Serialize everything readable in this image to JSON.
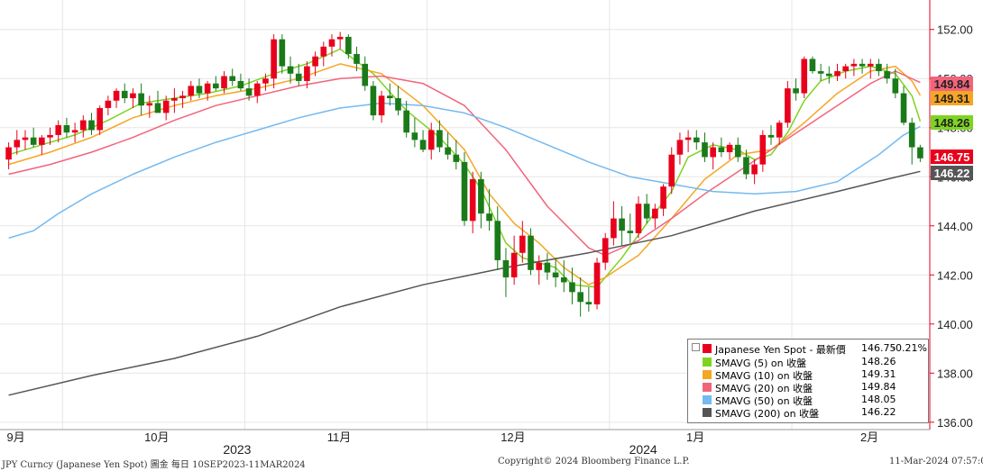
{
  "chart_data": {
    "type": "line",
    "title": "",
    "xlabel": "",
    "ylabel": "",
    "ylim": [
      135.7,
      153.2
    ],
    "yticks": [
      "136.00",
      "138.00",
      "140.00",
      "142.00",
      "144.00",
      "146.00",
      "148.00",
      "150.00",
      "152.00"
    ],
    "grid": true,
    "legend_position": "bottom-right",
    "month_labels": [
      "9月",
      "10月",
      "11月",
      "12月",
      "1月",
      "2月"
    ],
    "year_labels": [
      "2023",
      "2024"
    ],
    "candles": [
      [
        146.7,
        147.4,
        146.3,
        147.2
      ],
      [
        147.2,
        147.9,
        146.9,
        147.5
      ],
      [
        147.5,
        147.9,
        147.1,
        147.6
      ],
      [
        147.6,
        148.0,
        147.2,
        147.3
      ],
      [
        147.3,
        147.7,
        146.9,
        147.6
      ],
      [
        147.6,
        148.0,
        147.3,
        147.7
      ],
      [
        147.7,
        148.3,
        147.4,
        148.1
      ],
      [
        148.1,
        148.4,
        147.6,
        147.8
      ],
      [
        147.8,
        148.2,
        147.4,
        147.9
      ],
      [
        147.9,
        148.5,
        147.6,
        148.3
      ],
      [
        148.3,
        148.6,
        147.7,
        147.9
      ],
      [
        147.9,
        148.9,
        147.7,
        148.8
      ],
      [
        148.8,
        149.3,
        148.5,
        149.1
      ],
      [
        149.1,
        149.6,
        148.8,
        149.5
      ],
      [
        149.5,
        149.8,
        149.0,
        149.2
      ],
      [
        149.2,
        149.6,
        148.8,
        149.4
      ],
      [
        149.4,
        149.8,
        148.5,
        148.9
      ],
      [
        148.9,
        149.3,
        148.4,
        149.0
      ],
      [
        149.0,
        149.5,
        148.7,
        148.6
      ],
      [
        148.6,
        149.3,
        148.3,
        149.1
      ],
      [
        149.1,
        149.6,
        148.6,
        149.2
      ],
      [
        149.2,
        149.5,
        148.8,
        149.3
      ],
      [
        149.3,
        149.9,
        149.1,
        149.7
      ],
      [
        149.7,
        150.0,
        149.2,
        149.4
      ],
      [
        149.4,
        149.9,
        149.1,
        149.8
      ],
      [
        149.8,
        150.1,
        149.5,
        149.6
      ],
      [
        149.6,
        150.3,
        149.4,
        150.1
      ],
      [
        150.1,
        150.4,
        149.7,
        149.9
      ],
      [
        149.9,
        150.2,
        149.5,
        149.6
      ],
      [
        149.6,
        150.0,
        149.1,
        149.3
      ],
      [
        149.3,
        149.9,
        149.0,
        149.8
      ],
      [
        149.8,
        150.2,
        149.5,
        150.0
      ],
      [
        150.0,
        151.8,
        149.6,
        151.6
      ],
      [
        151.6,
        151.8,
        150.2,
        150.5
      ],
      [
        150.5,
        150.9,
        149.8,
        150.2
      ],
      [
        150.2,
        150.6,
        149.7,
        149.9
      ],
      [
        149.9,
        150.7,
        149.6,
        150.5
      ],
      [
        150.5,
        151.1,
        150.1,
        150.9
      ],
      [
        150.9,
        151.5,
        150.5,
        151.3
      ],
      [
        151.3,
        151.8,
        150.9,
        151.6
      ],
      [
        151.6,
        151.9,
        151.2,
        151.7
      ],
      [
        151.7,
        151.8,
        150.8,
        151.0
      ],
      [
        151.0,
        151.3,
        150.3,
        150.6
      ],
      [
        150.6,
        150.9,
        149.5,
        149.7
      ],
      [
        149.7,
        149.9,
        148.3,
        148.5
      ],
      [
        148.5,
        149.5,
        148.2,
        149.3
      ],
      [
        149.3,
        149.8,
        148.9,
        149.2
      ],
      [
        149.2,
        149.7,
        148.5,
        148.7
      ],
      [
        148.7,
        149.1,
        147.6,
        147.8
      ],
      [
        147.8,
        148.4,
        147.2,
        147.5
      ],
      [
        147.5,
        147.9,
        147.0,
        147.1
      ],
      [
        147.1,
        148.2,
        146.7,
        147.9
      ],
      [
        147.9,
        148.3,
        147.0,
        147.2
      ],
      [
        147.2,
        147.8,
        146.7,
        146.9
      ],
      [
        146.9,
        147.5,
        146.3,
        146.6
      ],
      [
        146.6,
        147.0,
        144.0,
        144.2
      ],
      [
        144.2,
        146.2,
        143.7,
        145.9
      ],
      [
        145.9,
        146.2,
        143.9,
        144.5
      ],
      [
        144.5,
        145.5,
        143.8,
        144.2
      ],
      [
        144.2,
        144.8,
        142.2,
        142.6
      ],
      [
        142.6,
        143.1,
        141.1,
        141.9
      ],
      [
        141.9,
        143.6,
        141.6,
        142.9
      ],
      [
        142.9,
        144.2,
        142.5,
        143.6
      ],
      [
        143.6,
        143.9,
        142.0,
        142.2
      ],
      [
        142.2,
        142.8,
        141.6,
        142.5
      ],
      [
        142.5,
        142.9,
        141.8,
        142.1
      ],
      [
        142.1,
        142.7,
        141.5,
        141.9
      ],
      [
        141.9,
        142.6,
        141.3,
        141.7
      ],
      [
        141.7,
        142.3,
        140.8,
        141.3
      ],
      [
        141.3,
        141.9,
        140.3,
        140.9
      ],
      [
        140.9,
        141.5,
        140.5,
        140.8
      ],
      [
        140.8,
        142.7,
        140.6,
        142.5
      ],
      [
        142.5,
        143.7,
        142.2,
        143.5
      ],
      [
        143.5,
        145.0,
        143.2,
        144.3
      ],
      [
        144.3,
        144.8,
        143.2,
        143.8
      ],
      [
        143.8,
        144.5,
        143.3,
        143.7
      ],
      [
        143.7,
        145.2,
        143.5,
        144.9
      ],
      [
        144.9,
        145.3,
        144.1,
        144.3
      ],
      [
        144.3,
        144.9,
        143.9,
        144.7
      ],
      [
        144.7,
        145.7,
        144.4,
        145.6
      ],
      [
        145.6,
        147.2,
        145.3,
        146.9
      ],
      [
        146.9,
        147.8,
        146.5,
        147.5
      ],
      [
        147.5,
        147.9,
        147.0,
        147.6
      ],
      [
        147.6,
        147.9,
        147.1,
        147.4
      ],
      [
        147.4,
        147.8,
        146.6,
        146.8
      ],
      [
        146.8,
        147.4,
        146.3,
        147.2
      ],
      [
        147.2,
        147.6,
        146.8,
        147.0
      ],
      [
        147.0,
        147.4,
        146.7,
        147.3
      ],
      [
        147.3,
        147.6,
        146.6,
        146.8
      ],
      [
        146.8,
        147.1,
        145.9,
        146.1
      ],
      [
        146.1,
        146.7,
        145.7,
        146.5
      ],
      [
        146.5,
        147.9,
        146.2,
        147.7
      ],
      [
        147.7,
        148.1,
        147.3,
        147.6
      ],
      [
        147.6,
        148.3,
        147.3,
        148.2
      ],
      [
        148.2,
        149.9,
        148.0,
        149.6
      ],
      [
        149.6,
        150.0,
        149.1,
        149.4
      ],
      [
        149.4,
        150.9,
        149.2,
        150.8
      ],
      [
        150.8,
        150.9,
        150.2,
        150.3
      ],
      [
        150.3,
        150.6,
        149.9,
        150.2
      ],
      [
        150.2,
        150.5,
        149.8,
        150.1
      ],
      [
        150.1,
        150.6,
        149.9,
        150.3
      ],
      [
        150.3,
        150.6,
        150.0,
        150.5
      ],
      [
        150.5,
        150.8,
        150.1,
        150.6
      ],
      [
        150.6,
        150.8,
        150.2,
        150.5
      ],
      [
        150.5,
        150.8,
        150.0,
        150.6
      ],
      [
        150.6,
        150.8,
        150.1,
        150.3
      ],
      [
        150.3,
        150.6,
        149.8,
        150.0
      ],
      [
        150.0,
        150.4,
        149.2,
        149.4
      ],
      [
        149.4,
        149.7,
        148.1,
        148.2
      ],
      [
        148.2,
        148.4,
        146.5,
        147.2
      ],
      [
        147.2,
        147.3,
        146.6,
        146.75
      ]
    ],
    "series": [
      {
        "name": "SMAVG (5)  on 收盤",
        "color": "#7ed321",
        "values": [
          [
            0,
            146.9
          ],
          [
            4,
            147.3
          ],
          [
            8,
            147.7
          ],
          [
            12,
            148.3
          ],
          [
            16,
            149.0
          ],
          [
            20,
            149.2
          ],
          [
            24,
            149.4
          ],
          [
            28,
            149.7
          ],
          [
            32,
            150.2
          ],
          [
            36,
            150.6
          ],
          [
            40,
            151.2
          ],
          [
            44,
            150.2
          ],
          [
            48,
            148.7
          ],
          [
            52,
            147.6
          ],
          [
            55,
            146.5
          ],
          [
            57,
            145.5
          ],
          [
            60,
            143.3
          ],
          [
            62,
            142.7
          ],
          [
            64,
            142.5
          ],
          [
            66,
            142.3
          ],
          [
            68,
            141.6
          ],
          [
            71,
            141.5
          ],
          [
            74,
            142.7
          ],
          [
            77,
            144.1
          ],
          [
            80,
            145.4
          ],
          [
            82,
            146.8
          ],
          [
            85,
            147.3
          ],
          [
            88,
            147.1
          ],
          [
            90,
            146.7
          ],
          [
            92,
            146.9
          ],
          [
            94,
            147.8
          ],
          [
            96,
            149.1
          ],
          [
            98,
            149.9
          ],
          [
            101,
            150.3
          ],
          [
            104,
            150.5
          ],
          [
            107,
            150.2
          ],
          [
            109,
            149.3
          ],
          [
            110,
            148.26
          ]
        ]
      },
      {
        "name": "SMAVG (10)  on 收盤",
        "color": "#f5a623",
        "values": [
          [
            0,
            146.5
          ],
          [
            5,
            147.0
          ],
          [
            10,
            147.6
          ],
          [
            15,
            148.4
          ],
          [
            20,
            148.9
          ],
          [
            25,
            149.3
          ],
          [
            30,
            149.6
          ],
          [
            35,
            150.0
          ],
          [
            40,
            150.6
          ],
          [
            45,
            150.2
          ],
          [
            50,
            148.9
          ],
          [
            55,
            147.1
          ],
          [
            58,
            145.3
          ],
          [
            61,
            144.1
          ],
          [
            64,
            143.3
          ],
          [
            67,
            142.3
          ],
          [
            70,
            141.6
          ],
          [
            72,
            141.9
          ],
          [
            76,
            142.8
          ],
          [
            80,
            144.3
          ],
          [
            84,
            145.9
          ],
          [
            88,
            146.9
          ],
          [
            92,
            147.1
          ],
          [
            96,
            148.2
          ],
          [
            100,
            149.4
          ],
          [
            104,
            150.3
          ],
          [
            107,
            150.5
          ],
          [
            109,
            149.9
          ],
          [
            110,
            149.31
          ]
        ]
      },
      {
        "name": "SMAVG (20)  on 收盤",
        "color": "#f2647c",
        "values": [
          [
            0,
            146.1
          ],
          [
            5,
            146.5
          ],
          [
            10,
            147.0
          ],
          [
            15,
            147.6
          ],
          [
            20,
            148.3
          ],
          [
            25,
            148.9
          ],
          [
            30,
            149.3
          ],
          [
            35,
            149.7
          ],
          [
            40,
            150.0
          ],
          [
            45,
            150.1
          ],
          [
            50,
            149.8
          ],
          [
            55,
            148.9
          ],
          [
            60,
            147.1
          ],
          [
            65,
            144.8
          ],
          [
            70,
            143.1
          ],
          [
            72,
            142.8
          ],
          [
            76,
            143.4
          ],
          [
            80,
            144.3
          ],
          [
            84,
            145.3
          ],
          [
            88,
            146.2
          ],
          [
            92,
            147.1
          ],
          [
            96,
            148.0
          ],
          [
            100,
            148.9
          ],
          [
            104,
            149.8
          ],
          [
            107,
            150.3
          ],
          [
            110,
            149.84
          ]
        ]
      },
      {
        "name": "SMAVG (50)  on 收盤",
        "color": "#74b9f0",
        "values": [
          [
            0,
            143.5
          ],
          [
            3,
            143.8
          ],
          [
            6,
            144.5
          ],
          [
            10,
            145.3
          ],
          [
            15,
            146.1
          ],
          [
            20,
            146.8
          ],
          [
            25,
            147.4
          ],
          [
            30,
            147.9
          ],
          [
            35,
            148.4
          ],
          [
            40,
            148.8
          ],
          [
            45,
            149.0
          ],
          [
            50,
            148.9
          ],
          [
            55,
            148.6
          ],
          [
            60,
            148.0
          ],
          [
            65,
            147.3
          ],
          [
            70,
            146.6
          ],
          [
            75,
            146.0
          ],
          [
            80,
            145.7
          ],
          [
            85,
            145.4
          ],
          [
            90,
            145.3
          ],
          [
            95,
            145.4
          ],
          [
            100,
            145.8
          ],
          [
            105,
            146.9
          ],
          [
            108,
            147.7
          ],
          [
            110,
            148.05
          ]
        ]
      },
      {
        "name": "SMAVG (200)  on 收盤",
        "color": "#555555",
        "values": [
          [
            0,
            137.1
          ],
          [
            10,
            137.9
          ],
          [
            20,
            138.6
          ],
          [
            30,
            139.5
          ],
          [
            40,
            140.7
          ],
          [
            50,
            141.6
          ],
          [
            60,
            142.3
          ],
          [
            70,
            142.9
          ],
          [
            80,
            143.6
          ],
          [
            90,
            144.6
          ],
          [
            100,
            145.4
          ],
          [
            106,
            145.9
          ],
          [
            110,
            146.22
          ]
        ]
      }
    ],
    "price_labels": [
      {
        "text": "149.84",
        "value": 149.84,
        "bg": "#f2647c",
        "fg": "#222222"
      },
      {
        "text": "149.31",
        "value": 149.31,
        "bg": "#f5a623",
        "fg": "#222222"
      },
      {
        "text": "148.26",
        "value": 148.26,
        "bg": "#7ed321",
        "fg": "#222222"
      },
      {
        "text": "146.75",
        "value": 146.75,
        "bg": "#e8001c",
        "fg": "#ffffff"
      },
      {
        "text": "146.22",
        "value": 146.22,
        "bg": "#555555",
        "fg": "#ffffff"
      }
    ]
  },
  "legend": {
    "rows": [
      {
        "name": "Japanese Yen Spot - 最新價",
        "value": "146.75",
        "change": "-0.21%",
        "color": "#e8001c"
      },
      {
        "name": "SMAVG (5)  on 收盤",
        "value": "148.26",
        "change": "",
        "color": "#7ed321"
      },
      {
        "name": "SMAVG (10)  on 收盤",
        "value": "149.31",
        "change": "",
        "color": "#f5a623"
      },
      {
        "name": "SMAVG (20)  on 收盤",
        "value": "149.84",
        "change": "",
        "color": "#f2647c"
      },
      {
        "name": "SMAVG (50)  on 收盤",
        "value": "148.05",
        "change": "",
        "color": "#74b9f0"
      },
      {
        "name": "SMAVG (200)  on 收盤",
        "value": "146.22",
        "change": "",
        "color": "#555555"
      }
    ]
  },
  "footer": {
    "left": "JPY Curncy (Japanese Yen Spot) 圖金  每日 10SEP2023-11MAR2024",
    "center": "Copyright© 2024 Bloomberg Finance L.P.",
    "right": "11-Mar-2024 07:57:08"
  },
  "colors": {
    "up": "#e8001c",
    "down": "#1a7a1a",
    "grid": "#e6e6e6",
    "axis": "#e8001c"
  }
}
